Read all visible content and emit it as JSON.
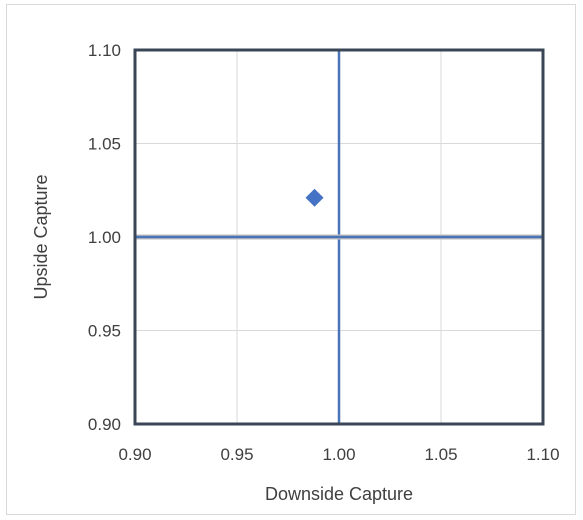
{
  "chart_data": {
    "type": "scatter",
    "title": "",
    "xlabel": "Downside Capture",
    "ylabel": "Upside Capture",
    "xlim": [
      0.9,
      1.1
    ],
    "ylim": [
      0.9,
      1.1
    ],
    "xticks": [
      0.9,
      0.95,
      1.0,
      1.05,
      1.1
    ],
    "yticks": [
      0.9,
      0.95,
      1.0,
      1.05,
      1.1
    ],
    "xtick_labels": [
      "0.90",
      "0.95",
      "1.00",
      "1.05",
      "1.10"
    ],
    "ytick_labels": [
      "0.90",
      "0.95",
      "1.00",
      "1.05",
      "1.10"
    ],
    "grid": true,
    "legend": "none",
    "reference_lines": [
      {
        "orientation": "vertical",
        "value": 1.0
      },
      {
        "orientation": "horizontal",
        "value": 1.0
      }
    ],
    "series": [
      {
        "marker": "diamond",
        "color": "#4472c4",
        "points": [
          {
            "x": 0.988,
            "y": 1.021
          }
        ]
      }
    ],
    "colors": {
      "marker": "#4472c4",
      "reference_line": "#4a74b8",
      "plot_border": "#3a4656",
      "grid": "#d9d9d9",
      "text": "#404040"
    }
  }
}
